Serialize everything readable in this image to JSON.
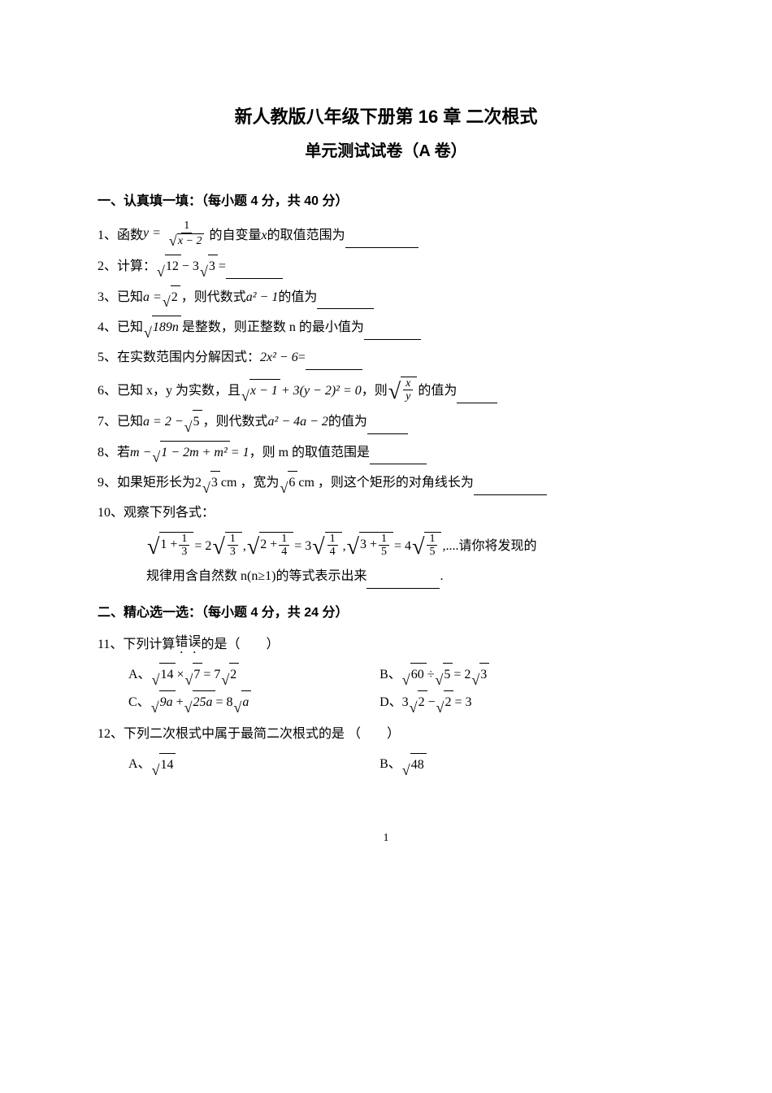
{
  "title_line1": "新人教版八年级下册第 16 章  二次根式",
  "title_line2": "单元测试试卷（A 卷）",
  "section1": "一、认真填一填：（每小题 4 分，共 40 分）",
  "q1_a": "1、函数 ",
  "q1_b": " 的自变量 ",
  "q1_c": " 的取值范围为",
  "q2_a": "2、计算： ",
  "q2_b": " =",
  "q3_a": "3、已知 ",
  "q3_b": " ，则代数式 ",
  "q3_c": " 的值为",
  "q4_a": "4、已知 ",
  "q4_b": " 是整数，则正整数 n 的最小值为",
  "q5_a": "5、在实数范围内分解因式： ",
  "q5_b": " =",
  "q6_a": "6、已知 x，y 为实数，且 ",
  "q6_b": " ，则 ",
  "q6_c": " 的值为",
  "q7_a": "7、已知 ",
  "q7_b": " ，则代数式 ",
  "q7_c": " 的值为",
  "q8_a": "8、若 ",
  "q8_b": " ，则 m 的取值范围是",
  "q9_a": "9、如果矩形长为 ",
  "q9_b": " cm ，宽为 ",
  "q9_c": " cm ，则这个矩形的对角线长为",
  "q10_a": "10、观察下列各式：",
  "q10_tail": "请你将发现的",
  "q10_line2": "规律用含自然数 n(n≥1)的等式表示出来",
  "q10_dot": " .",
  "section2": "二、精心选一选：（每小题 4 分，共 24 分）",
  "q11_a": "11、下列计算",
  "q11_err": "错误",
  "q11_b": "的是（　　）",
  "q11A": "A、",
  "q11B": "B、",
  "q11C": "C、",
  "q11D": "D、",
  "q12": "12、下列二次根式中属于最简二次根式的是 （　　）",
  "q12A": "A、",
  "q12B": "B、",
  "pagenum": "1",
  "math": {
    "y_eq": "y =",
    "x_minus_2": "x − 2",
    "one": "1",
    "x": "x",
    "twelve": "12",
    "minus_3sqrt3_pre": " − 3",
    "three": "3",
    "a_eq_sqrt2_pre": "a = ",
    "two": "2",
    "a2_minus1": "a² − 1",
    "n189": "189n",
    "poly_2x2_6": "2x² − 6",
    "x_minus_1": "x − 1",
    "plus_3y2_eq0": " + 3(y − 2)² = 0",
    "frac_x_y_num": "x",
    "frac_x_y_den": "y",
    "a_eq_2_minus": "a = 2 − ",
    "five": "5",
    "a2_4a_2": "a² − 4a − 2",
    "m_minus": "m − ",
    "one_2m_m2": "1 − 2m + m²",
    "eq_1": " = 1",
    "two_sqrt3_pre": "2",
    "six": "6",
    "obs_1_13": "1 +",
    "frac13_num": "1",
    "frac13_den": "3",
    "eq_2sqrt": " = 2",
    "comma": ", ",
    "obs_2_14": "2 +",
    "frac14_num": "1",
    "frac14_den": "4",
    "eq_3sqrt": " = 3",
    "obs_3_15": "3 +",
    "frac15_num": "1",
    "frac15_den": "5",
    "eq_4sqrt": " = 4",
    "dots": ",....",
    "fourteen": "14",
    "times": " × ",
    "seven": "7",
    "eq_7sqrt2": " = 7",
    "sixty": "60",
    "div": " ÷ ",
    "eq_2sqrt3": " = 2",
    "nine_a": "9a",
    "plus": " + ",
    "twentyfive_a": "25a",
    "eq_8sqrt_a": " = 8",
    "a": "a",
    "three_sqrt2_pre": "3",
    "minus": " − ",
    "eq_3": " = 3",
    "fortyeight": "48"
  }
}
